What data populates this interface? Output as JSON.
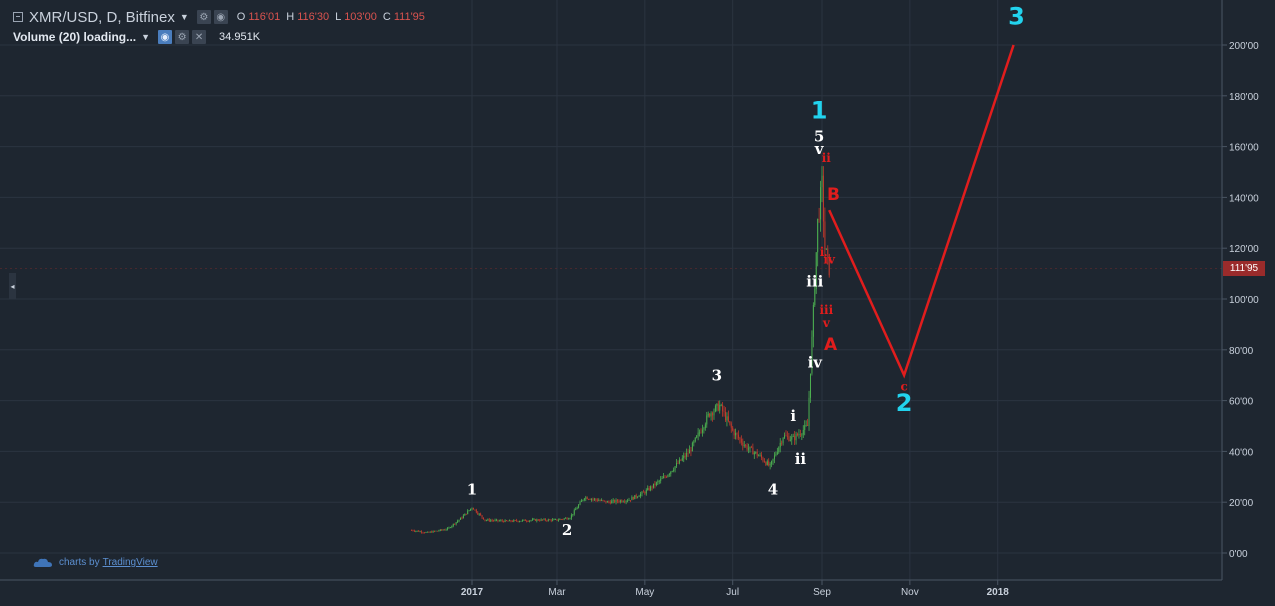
{
  "header": {
    "symbol_title": "XMR/USD, D, Bitfinex",
    "ohlc": [
      {
        "label": "O",
        "value": "116'01"
      },
      {
        "label": "H",
        "value": "116'30"
      },
      {
        "label": "L",
        "value": "103'00"
      },
      {
        "label": "C",
        "value": "111'95"
      }
    ],
    "volume_label": "Volume (20) loading...",
    "volume_value": "34.951K"
  },
  "watermark": {
    "prefix": "charts by",
    "brand": "TradingView"
  },
  "colors": {
    "background": "#1e2630",
    "grid": "#2b3440",
    "axis_text": "#c9d1dc",
    "candle_up": "#4caf50",
    "candle_down": "#c0392b",
    "wave_major": "#22d3ee",
    "wave_minor": "#ffffff",
    "wave_corrective": "#e11d1d",
    "projection_line": "#e11d1d",
    "last_price_tag": "#9a2b2b"
  },
  "chart_data": {
    "type": "candlestick",
    "x_tick_labels": [
      "2017",
      "Mar",
      "May",
      "Jul",
      "Sep",
      "Nov",
      "2018"
    ],
    "y_tick_labels": [
      "0'00",
      "20'00",
      "40'00",
      "60'00",
      "80'00",
      "100'00",
      "120'00",
      "140'00",
      "160'00",
      "180'00",
      "200'00"
    ],
    "y_tick_values": [
      0,
      20,
      40,
      60,
      80,
      100,
      120,
      140,
      160,
      180,
      200
    ],
    "ylim": [
      -6,
      212
    ],
    "last_price_label": "111'95",
    "last_price": 111.95,
    "price_path": [
      [
        "2016-11-20",
        9
      ],
      [
        "2016-12-01",
        8
      ],
      [
        "2016-12-15",
        9.5
      ],
      [
        "2016-12-25",
        14
      ],
      [
        "2017-01-01",
        18
      ],
      [
        "2017-01-10",
        13
      ],
      [
        "2017-01-25",
        12.5
      ],
      [
        "2017-02-15",
        13
      ],
      [
        "2017-03-01",
        13
      ],
      [
        "2017-03-10",
        14
      ],
      [
        "2017-03-20",
        22
      ],
      [
        "2017-04-05",
        20
      ],
      [
        "2017-04-20",
        21
      ],
      [
        "2017-05-01",
        24
      ],
      [
        "2017-05-15",
        30
      ],
      [
        "2017-06-01",
        40
      ],
      [
        "2017-06-15",
        55
      ],
      [
        "2017-06-22",
        58
      ],
      [
        "2017-07-01",
        48
      ],
      [
        "2017-07-10",
        42
      ],
      [
        "2017-07-20",
        38
      ],
      [
        "2017-07-27",
        34
      ],
      [
        "2017-08-05",
        46
      ],
      [
        "2017-08-12",
        45
      ],
      [
        "2017-08-22",
        50
      ],
      [
        "2017-08-26",
        95
      ],
      [
        "2017-08-29",
        130
      ],
      [
        "2017-09-01",
        145
      ],
      [
        "2017-09-03",
        120
      ],
      [
        "2017-09-06",
        112
      ]
    ],
    "projection": {
      "points": [
        [
          "2017-09-06",
          135
        ],
        [
          "2017-10-28",
          70
        ],
        [
          "2018-01-12",
          200
        ]
      ]
    },
    "wave_labels": [
      {
        "text": "1",
        "date": "2017-01-01",
        "price": 23,
        "group": "minor"
      },
      {
        "text": "2",
        "date": "2017-03-08",
        "price": 7,
        "group": "minor"
      },
      {
        "text": "3",
        "date": "2017-06-20",
        "price": 68,
        "group": "minor"
      },
      {
        "text": "4",
        "date": "2017-07-29",
        "price": 23,
        "group": "minor"
      },
      {
        "text": "i",
        "date": "2017-08-12",
        "price": 52,
        "group": "minor"
      },
      {
        "text": "ii",
        "date": "2017-08-17",
        "price": 35,
        "group": "minor"
      },
      {
        "text": "iii",
        "date": "2017-08-27",
        "price": 105,
        "group": "minor"
      },
      {
        "text": "iv",
        "date": "2017-08-27",
        "price": 73,
        "group": "minor"
      },
      {
        "text": "5",
        "date": "2017-08-30",
        "price": 162,
        "group": "minor"
      },
      {
        "text": "v",
        "date": "2017-08-30",
        "price": 157,
        "group": "minor"
      },
      {
        "text": "1",
        "date": "2017-08-30",
        "price": 171,
        "group": "major"
      },
      {
        "text": "2",
        "date": "2017-10-28",
        "price": 56,
        "group": "major"
      },
      {
        "text": "3",
        "date": "2018-01-14",
        "price": 208,
        "group": "major"
      },
      {
        "text": "ii",
        "date": "2017-09-04",
        "price": 154,
        "group": "corrective_small"
      },
      {
        "text": "i",
        "date": "2017-09-01",
        "price": 117,
        "group": "corrective_small"
      },
      {
        "text": "iv",
        "date": "2017-09-06",
        "price": 114,
        "group": "corrective_small"
      },
      {
        "text": "iii",
        "date": "2017-09-04",
        "price": 94,
        "group": "corrective_small"
      },
      {
        "text": "v",
        "date": "2017-09-04",
        "price": 89,
        "group": "corrective_small"
      },
      {
        "text": "c",
        "date": "2017-10-28",
        "price": 64,
        "group": "corrective_small"
      },
      {
        "text": "B",
        "date": "2017-09-09",
        "price": 139,
        "group": "corrective"
      },
      {
        "text": "A",
        "date": "2017-09-07",
        "price": 80,
        "group": "corrective"
      }
    ]
  }
}
